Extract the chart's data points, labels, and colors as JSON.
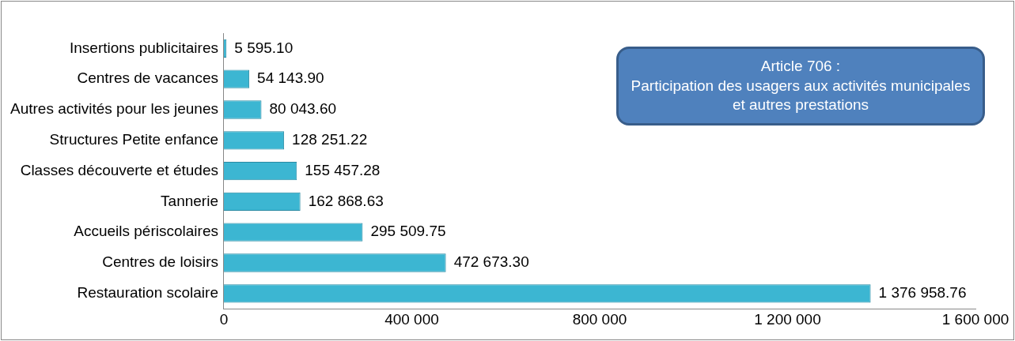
{
  "chart_data": {
    "type": "bar",
    "orientation": "horizontal",
    "title": "Article 706 :\nParticipation des usagers aux activités municipales et autres prestations",
    "categories": [
      "Insertions publicitaires",
      "Centres de vacances",
      "Autres activités pour les jeunes",
      "Structures Petite enfance",
      "Classes découverte et études",
      "Tannerie",
      "Accueils périscolaires",
      "Centres de loisirs",
      "Restauration scolaire"
    ],
    "values": [
      5595.1,
      54143.9,
      80043.6,
      128251.22,
      155457.28,
      162868.63,
      295509.75,
      472673.3,
      1376958.76
    ],
    "value_labels": [
      "5 595.10",
      "54 143.90",
      "80 043.60",
      "128 251.22",
      "155 457.28",
      "162 868.63",
      "295 509.75",
      "472 673.30",
      "1 376 958.76"
    ],
    "color": "#3cb6d2",
    "xlim": [
      0,
      1600000
    ],
    "xticks": [
      0,
      {
        "value": 400000,
        "label": "400 000"
      },
      {
        "value": 800000,
        "label": "800 000"
      },
      {
        "value": 1200000,
        "label": "1 200 000"
      },
      {
        "value": 1600000,
        "label": "1 600 000"
      }
    ],
    "grid": false,
    "legend": false
  }
}
